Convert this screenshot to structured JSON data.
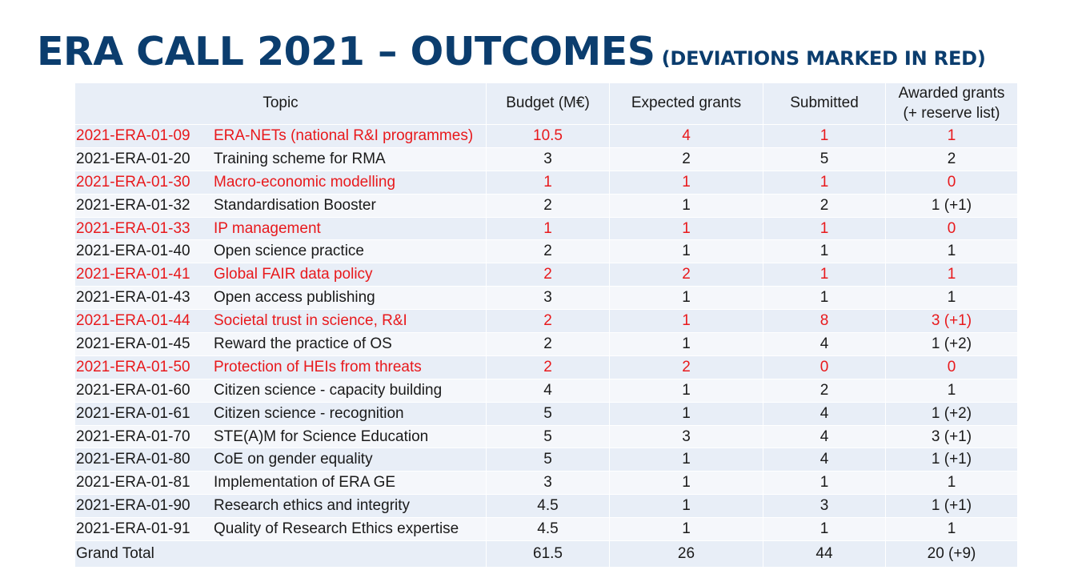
{
  "title": {
    "main": "ERA CALL 2021 – OUTCOMES",
    "sub": "(DEVIATIONS MARKED IN RED)"
  },
  "colors": {
    "title": "#0b3d6e",
    "deviation": "#e8191c",
    "row_shade": "#e8eef7"
  },
  "table": {
    "headers": [
      "Topic",
      "Budget (M€)",
      "Expected grants",
      "Submitted",
      "Awarded grants (+ reserve list)"
    ],
    "rows": [
      {
        "code": "2021-ERA-01-09",
        "name": "ERA-NETs (national R&I programmes)",
        "budget": "10.5",
        "expected": "4",
        "submitted": "1",
        "awarded": "1",
        "deviation": true
      },
      {
        "code": "2021-ERA-01-20",
        "name": "Training scheme for RMA",
        "budget": "3",
        "expected": "2",
        "submitted": "5",
        "awarded": "2",
        "deviation": false
      },
      {
        "code": "2021-ERA-01-30",
        "name": "Macro-economic modelling",
        "budget": "1",
        "expected": "1",
        "submitted": "1",
        "awarded": "0",
        "deviation": true
      },
      {
        "code": "2021-ERA-01-32",
        "name": "Standardisation Booster",
        "budget": "2",
        "expected": "1",
        "submitted": "2",
        "awarded": "1 (+1)",
        "deviation": false
      },
      {
        "code": "2021-ERA-01-33",
        "name": "IP management",
        "budget": "1",
        "expected": "1",
        "submitted": "1",
        "awarded": "0",
        "deviation": true
      },
      {
        "code": "2021-ERA-01-40",
        "name": "Open science practice",
        "budget": "2",
        "expected": "1",
        "submitted": "1",
        "awarded": "1",
        "deviation": false
      },
      {
        "code": "2021-ERA-01-41",
        "name": "Global FAIR data policy",
        "budget": "2",
        "expected": "2",
        "submitted": "1",
        "awarded": "1",
        "deviation": true
      },
      {
        "code": "2021-ERA-01-43",
        "name": "Open access publishing",
        "budget": "3",
        "expected": "1",
        "submitted": "1",
        "awarded": "1",
        "deviation": false
      },
      {
        "code": "2021-ERA-01-44",
        "name": "Societal trust in science, R&I",
        "budget": "2",
        "expected": "1",
        "submitted": "8",
        "awarded": "3 (+1)",
        "deviation": true
      },
      {
        "code": "2021-ERA-01-45",
        "name": "Reward the practice of OS",
        "budget": "2",
        "expected": "1",
        "submitted": "4",
        "awarded": "1 (+2)",
        "deviation": false
      },
      {
        "code": "2021-ERA-01-50",
        "name": "Protection of HEIs from threats",
        "budget": "2",
        "expected": "2",
        "submitted": "0",
        "awarded": "0",
        "deviation": true
      },
      {
        "code": "2021-ERA-01-60",
        "name": "Citizen science - capacity building",
        "budget": "4",
        "expected": "1",
        "submitted": "2",
        "awarded": "1",
        "deviation": false
      },
      {
        "code": "2021-ERA-01-61",
        "name": "Citizen science - recognition",
        "budget": "5",
        "expected": "1",
        "submitted": "4",
        "awarded": "1 (+2)",
        "deviation": false
      },
      {
        "code": "2021-ERA-01-70",
        "name": "STE(A)M for Science Education",
        "budget": "5",
        "expected": "3",
        "submitted": "4",
        "awarded": "3 (+1)",
        "deviation": false
      },
      {
        "code": "2021-ERA-01-80",
        "name": "CoE on gender equality",
        "budget": "5",
        "expected": "1",
        "submitted": "4",
        "awarded": "1 (+1)",
        "deviation": false
      },
      {
        "code": "2021-ERA-01-81",
        "name": "Implementation of ERA GE",
        "budget": "3",
        "expected": "1",
        "submitted": "1",
        "awarded": "1",
        "deviation": false
      },
      {
        "code": "2021-ERA-01-90",
        "name": "Research ethics and integrity",
        "budget": "4.5",
        "expected": "1",
        "submitted": "3",
        "awarded": "1 (+1)",
        "deviation": false
      },
      {
        "code": "2021-ERA-01-91",
        "name": "Quality of Research Ethics expertise",
        "budget": "4.5",
        "expected": "1",
        "submitted": "1",
        "awarded": "1",
        "deviation": false
      }
    ],
    "total": {
      "label": "Grand Total",
      "budget": "61.5",
      "expected": "26",
      "submitted": "44",
      "awarded": "20 (+9)"
    }
  }
}
